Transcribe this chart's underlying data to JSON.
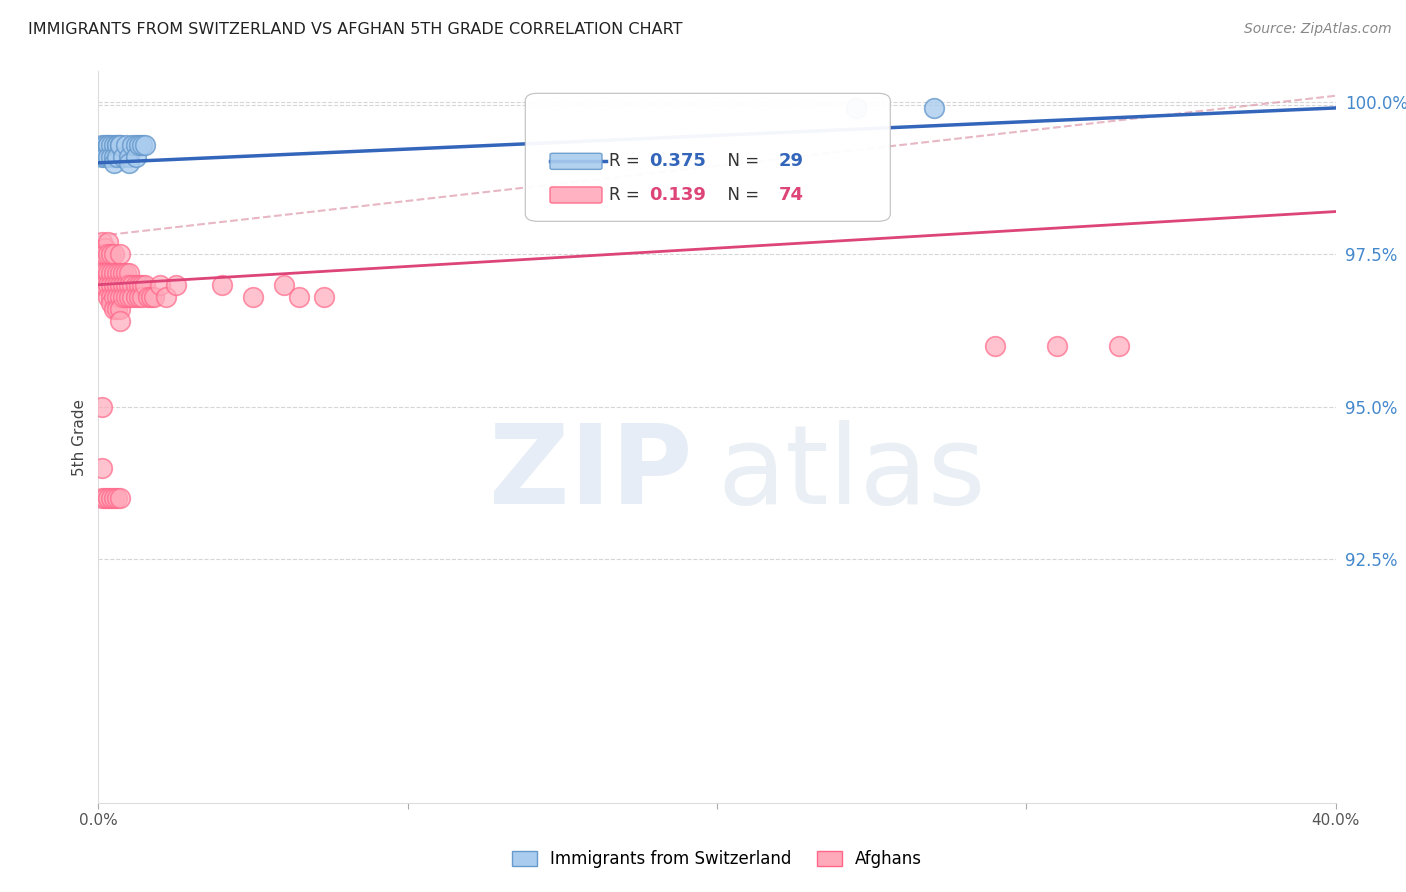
{
  "title": "IMMIGRANTS FROM SWITZERLAND VS AFGHAN 5TH GRADE CORRELATION CHART",
  "source": "Source: ZipAtlas.com",
  "ylabel": "5th Grade",
  "xlim": [
    0.0,
    0.4
  ],
  "ylim": [
    0.885,
    1.005
  ],
  "yticks_right": [
    1.0,
    0.975,
    0.95,
    0.925
  ],
  "ytick_right_labels": [
    "100.0%",
    "97.5%",
    "95.0%",
    "92.5%"
  ],
  "blue_R": 0.375,
  "blue_N": 29,
  "pink_R": 0.139,
  "pink_N": 74,
  "blue_edge_color": "#6699CC",
  "pink_edge_color": "#FF6688",
  "blue_face_color": "#AACCEE",
  "pink_face_color": "#FFAABB",
  "regression_blue_color": "#3366BB",
  "regression_pink_color": "#DD4477",
  "dashed_line_color": "#DD99AA",
  "legend_label_blue": "Immigrants from Switzerland",
  "legend_label_pink": "Afghans",
  "blue_x": [
    0.001,
    0.001,
    0.002,
    0.002,
    0.003,
    0.003,
    0.003,
    0.004,
    0.004,
    0.005,
    0.005,
    0.005,
    0.006,
    0.006,
    0.006,
    0.007,
    0.007,
    0.008,
    0.009,
    0.01,
    0.01,
    0.011,
    0.012,
    0.012,
    0.013,
    0.014,
    0.015,
    0.245,
    0.27
  ],
  "blue_y": [
    0.993,
    0.991,
    0.993,
    0.991,
    0.993,
    0.993,
    0.991,
    0.993,
    0.991,
    0.993,
    0.991,
    0.99,
    0.993,
    0.993,
    0.991,
    0.993,
    0.993,
    0.991,
    0.993,
    0.991,
    0.99,
    0.993,
    0.993,
    0.991,
    0.993,
    0.993,
    0.993,
    0.999,
    0.999
  ],
  "pink_x": [
    0.001,
    0.001,
    0.001,
    0.001,
    0.002,
    0.002,
    0.002,
    0.002,
    0.003,
    0.003,
    0.003,
    0.003,
    0.003,
    0.004,
    0.004,
    0.004,
    0.004,
    0.004,
    0.005,
    0.005,
    0.005,
    0.005,
    0.005,
    0.006,
    0.006,
    0.006,
    0.006,
    0.007,
    0.007,
    0.007,
    0.007,
    0.007,
    0.007,
    0.008,
    0.008,
    0.008,
    0.009,
    0.009,
    0.009,
    0.01,
    0.01,
    0.01,
    0.011,
    0.011,
    0.012,
    0.012,
    0.013,
    0.013,
    0.014,
    0.014,
    0.015,
    0.016,
    0.017,
    0.018,
    0.02,
    0.022,
    0.025,
    0.04,
    0.05,
    0.06,
    0.065,
    0.073,
    0.29,
    0.31,
    0.33,
    0.001,
    0.001,
    0.001,
    0.002,
    0.003,
    0.004,
    0.005,
    0.006,
    0.007
  ],
  "pink_y": [
    0.977,
    0.975,
    0.972,
    0.97,
    0.976,
    0.975,
    0.972,
    0.97,
    0.977,
    0.975,
    0.972,
    0.97,
    0.968,
    0.975,
    0.972,
    0.97,
    0.968,
    0.967,
    0.975,
    0.972,
    0.97,
    0.968,
    0.966,
    0.972,
    0.97,
    0.968,
    0.966,
    0.975,
    0.972,
    0.97,
    0.968,
    0.966,
    0.964,
    0.972,
    0.97,
    0.968,
    0.972,
    0.97,
    0.968,
    0.972,
    0.97,
    0.968,
    0.97,
    0.968,
    0.97,
    0.968,
    0.97,
    0.968,
    0.97,
    0.968,
    0.97,
    0.968,
    0.968,
    0.968,
    0.97,
    0.968,
    0.97,
    0.97,
    0.968,
    0.97,
    0.968,
    0.968,
    0.96,
    0.96,
    0.96,
    0.95,
    0.94,
    0.935,
    0.935,
    0.935,
    0.935,
    0.935,
    0.935,
    0.935
  ]
}
